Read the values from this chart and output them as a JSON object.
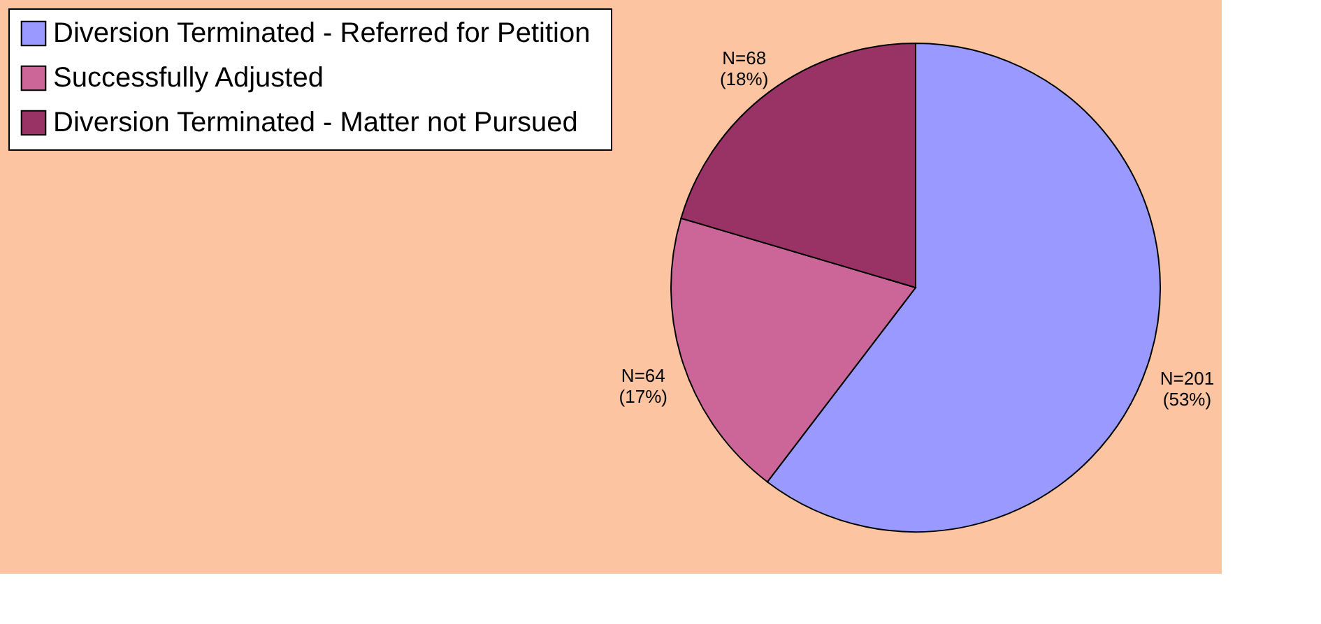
{
  "chart_data": {
    "type": "pie",
    "categories": [
      "Diversion Terminated -  Referred for Petition",
      "Successfully Adjusted",
      "Diversion Terminated - Matter not Pursued"
    ],
    "values": [
      201,
      64,
      68
    ],
    "value_labels": [
      "N=201\n(53%)",
      "N=64\n(17%)",
      "N=68\n(18%)"
    ],
    "colors": [
      "#9999ff",
      "#cc6699",
      "#993366"
    ],
    "legend": "left"
  }
}
